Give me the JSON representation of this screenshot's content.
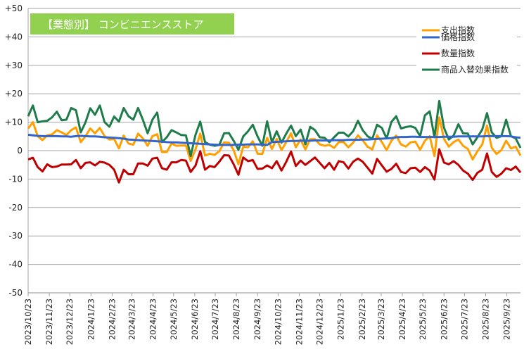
{
  "chart_data": {
    "type": "line",
    "title": "【業態別】 コンビニエンスストア",
    "xlabel": "",
    "ylabel": "",
    "ylim": [
      -50,
      50
    ],
    "yticks": [
      50,
      40,
      30,
      20,
      10,
      0,
      -10,
      -20,
      -30,
      -40,
      -50
    ],
    "ytick_labels": [
      "+50",
      "+40",
      "+30",
      "+20",
      "+10",
      "0",
      "-10",
      "-20",
      "-30",
      "-40",
      "-50"
    ],
    "grid": true,
    "legend_position": "top-right",
    "x_start": "2023-10-23",
    "x_step_days": 7,
    "xtick_labels": [
      "2023/10/23",
      "2023/11/23",
      "2023/12/23",
      "2024/1/23",
      "2024/2/23",
      "2024/3/23",
      "2024/4/23",
      "2024/5/23",
      "2024/6/23",
      "2024/7/23",
      "2024/8/23",
      "2024/9/23",
      "2024/10/23",
      "2024/11/23",
      "2024/12/23",
      "2025/1/23",
      "2025/2/23",
      "2025/3/23",
      "2025/4/23",
      "2025/5/23",
      "2025/6/23",
      "2025/7/23",
      "2025/8/23",
      "2025/9/23"
    ],
    "series": [
      {
        "name": "支出指数",
        "color": "#FFA000",
        "values": [
          7.8,
          10,
          5.1,
          3.7,
          5.4,
          5.7,
          7.2,
          6.4,
          5.5,
          7.2,
          8.2,
          3,
          5.1,
          7.8,
          6.1,
          8,
          5.1,
          3.9,
          4.1,
          0.8,
          5.3,
          2.5,
          2.1,
          6,
          4.3,
          1.7,
          5.1,
          5.8,
          -0.5,
          -0.5,
          2.5,
          1.7,
          1.8,
          1.8,
          -3.6,
          0.4,
          6,
          -1.7,
          -1.1,
          -1.5,
          -0.2,
          2.9,
          2.8,
          0.2,
          -4.8,
          1.4,
          1.2,
          3.3,
          -1.1,
          -1.2,
          4.5,
          0.6,
          4.1,
          0.2,
          3,
          6.1,
          1.2,
          3.9,
          0.4,
          4,
          4,
          2.2,
          1.7,
          2,
          1,
          3,
          3,
          1.2,
          2.8,
          5.4,
          3.6,
          1.4,
          0.4,
          5.4,
          3,
          0.2,
          3.5,
          5.3,
          2.2,
          1.4,
          2.9,
          3.2,
          0.3,
          3.5,
          5.1,
          -1.9,
          11.7,
          4.1,
          1.4,
          3,
          3.9,
          1.7,
          0.6,
          -3.1,
          -0.2,
          2.2,
          8.8,
          1,
          -1.2,
          0.2,
          3.5,
          0.8,
          1.4,
          -1.7
        ]
      },
      {
        "name": "価格指数",
        "color": "#3366CC",
        "values": [
          5.6,
          5.4,
          5.2,
          5.1,
          5.1,
          5.1,
          5.1,
          5.0,
          5.0,
          4.9,
          5.1,
          5.2,
          5.1,
          5.0,
          5.0,
          4.9,
          4.7,
          4.6,
          4.5,
          4.4,
          4.2,
          3.9,
          3.8,
          3.7,
          3.6,
          3.5,
          3.4,
          3.3,
          3.2,
          3.0,
          2.9,
          2.9,
          2.8,
          2.7,
          2.6,
          2.5,
          2.4,
          2.3,
          2.2,
          2.1,
          2.0,
          2.0,
          2.0,
          2.0,
          2.1,
          2.1,
          2.2,
          2.2,
          2.2,
          2.1,
          2.0,
          3.0,
          3.1,
          3.2,
          3.3,
          3.4,
          3.4,
          3.5,
          3.5,
          3.5,
          3.6,
          3.6,
          3.6,
          3.6,
          3.7,
          3.7,
          3.7,
          3.8,
          3.8,
          3.8,
          3.9,
          3.9,
          4.0,
          4.1,
          4.2,
          4.3,
          4.4,
          4.7,
          4.8,
          4.8,
          4.9,
          4.9,
          4.8,
          4.8,
          4.8,
          4.8,
          4.8,
          4.9,
          4.9,
          4.9,
          5.0,
          5.0,
          5.0,
          5.0,
          5.0,
          5.0,
          5.1,
          5.1,
          5.1,
          5.1,
          5.1,
          5.0,
          4.7,
          4.5
        ]
      },
      {
        "name": "数量指数",
        "color": "#C00000",
        "values": [
          -3.1,
          -2.5,
          -5.8,
          -7.3,
          -4.8,
          -5.8,
          -5.6,
          -4.9,
          -4.9,
          -4.8,
          -3.3,
          -6.2,
          -4.3,
          -4.1,
          -5.2,
          -3.9,
          -4.2,
          -5,
          -6.7,
          -11.2,
          -6.7,
          -8.3,
          -8.3,
          -4.5,
          -4.5,
          -5.3,
          -2.8,
          -2.5,
          -6.2,
          -6.7,
          -4.1,
          -4.1,
          -3.3,
          -3.5,
          -7.5,
          -5.3,
          -0.2,
          -6.7,
          -5.4,
          -5.8,
          -3.9,
          -1.6,
          -1.7,
          -4.8,
          -8.5,
          -2.4,
          -3.7,
          -3.3,
          -6.4,
          -6.3,
          -5.2,
          -6.2,
          -3.7,
          -7,
          -3.9,
          -0.3,
          -5.4,
          -3.5,
          -5,
          -3.7,
          -2.4,
          -4.3,
          -6.2,
          -4.3,
          -6.7,
          -3.7,
          -4.1,
          -6.3,
          -3.9,
          -2.8,
          -3.9,
          -6,
          -8.1,
          -2.9,
          -5.2,
          -7.4,
          -6.4,
          -4.6,
          -7.5,
          -7.9,
          -6.2,
          -6,
          -7.5,
          -5.8,
          -7,
          -10.2,
          0.5,
          -4.2,
          -4.8,
          -3.7,
          -5,
          -7,
          -8.1,
          -10.3,
          -7.8,
          -6.7,
          -1,
          -7.5,
          -9.2,
          -8.1,
          -6.2,
          -6.8,
          -5.6,
          -7.7
        ]
      },
      {
        "name": "商品入替効果指数",
        "color": "#1E7B4A",
        "values": [
          12.1,
          15.9,
          10,
          10.3,
          10.5,
          11.7,
          13.7,
          10.7,
          10.9,
          15,
          14.2,
          6.4,
          10,
          14.9,
          12.6,
          15.9,
          10,
          8.4,
          12,
          10.2,
          15,
          12.1,
          10.9,
          15,
          10.9,
          6.1,
          10.9,
          13.4,
          3,
          4.7,
          7.2,
          6.4,
          5.5,
          5.4,
          -1.9,
          5.5,
          10.2,
          3,
          2.1,
          1.7,
          2,
          6.1,
          6.2,
          3.5,
          0.3,
          5,
          6.8,
          9.1,
          5,
          1.7,
          10.3,
          3,
          6.8,
          2.8,
          6,
          8.8,
          5.1,
          7.4,
          2.2,
          8.4,
          7.2,
          4.7,
          4.5,
          3,
          4.7,
          6.3,
          6.3,
          5,
          6.8,
          10.5,
          7.2,
          5.1,
          4.1,
          9.1,
          8,
          4.3,
          10.1,
          12.1,
          7.8,
          8.3,
          8.6,
          8,
          5.1,
          12.4,
          13.8,
          4.7,
          17.5,
          8,
          3.9,
          5.3,
          9.3,
          6.1,
          6,
          2.2,
          4.7,
          7.4,
          13.2,
          6.4,
          4.5,
          5.1,
          10.9,
          5.1,
          4.3,
          1
        ]
      }
    ],
    "title_bg": "#92D050",
    "grid_color": "#A6A6A6"
  }
}
